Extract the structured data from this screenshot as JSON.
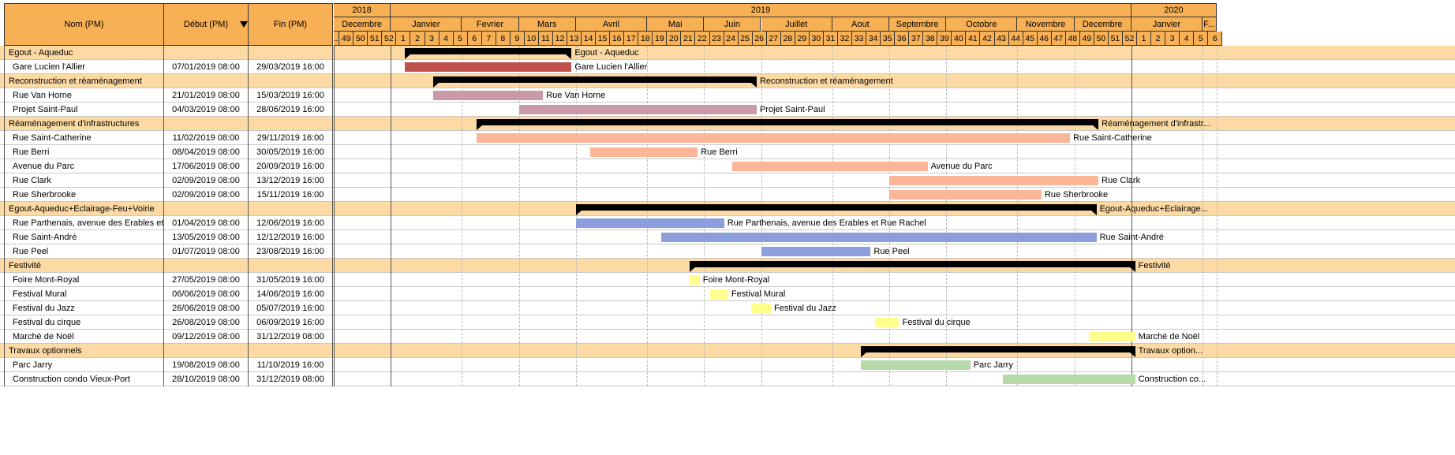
{
  "columns": {
    "name": "Nom (PM)",
    "start": "Début (PM)",
    "end": "Fin (PM)"
  },
  "sort_icon": "sort-descending-arrow-icon",
  "timeline": {
    "start_date": "2018-12-03",
    "first_week_partial_label": "...",
    "years": [
      {
        "label": "2018",
        "from": "2018-12-03",
        "to": "2018-12-31"
      },
      {
        "label": "2019",
        "from": "2018-12-31",
        "to": "2019-12-30"
      },
      {
        "label": "2020",
        "from": "2019-12-30",
        "to": "2020-02-10"
      }
    ],
    "months": [
      {
        "label": "Decembre",
        "from": "2018-12-03",
        "to": "2018-12-31"
      },
      {
        "label": "Janvier",
        "from": "2018-12-31",
        "to": "2019-02-04"
      },
      {
        "label": "Fevrier",
        "from": "2019-02-04",
        "to": "2019-03-04"
      },
      {
        "label": "Mars",
        "from": "2019-03-04",
        "to": "2019-04-01"
      },
      {
        "label": "Avril",
        "from": "2019-04-01",
        "to": "2019-05-06"
      },
      {
        "label": "Mai",
        "from": "2019-05-06",
        "to": "2019-06-03"
      },
      {
        "label": "Juin",
        "from": "2019-06-03",
        "to": "2019-07-01"
      },
      {
        "label": "Juillet",
        "from": "2019-07-01",
        "to": "2019-08-05"
      },
      {
        "label": "Aout",
        "from": "2019-08-05",
        "to": "2019-09-02"
      },
      {
        "label": "Septembre",
        "from": "2019-09-02",
        "to": "2019-09-30"
      },
      {
        "label": "Octobre",
        "from": "2019-09-30",
        "to": "2019-11-04"
      },
      {
        "label": "Novembre",
        "from": "2019-11-04",
        "to": "2019-12-02"
      },
      {
        "label": "Decembre",
        "from": "2019-12-02",
        "to": "2019-12-30"
      },
      {
        "label": "Janvier",
        "from": "2019-12-30",
        "to": "2020-02-03"
      },
      {
        "label": "F...",
        "from": "2020-02-03",
        "to": "2020-02-10"
      }
    ],
    "weeks": [
      "49",
      "50",
      "51",
      "52",
      "1",
      "2",
      "3",
      "4",
      "5",
      "6",
      "7",
      "8",
      "9",
      "10",
      "11",
      "12",
      "13",
      "14",
      "15",
      "16",
      "17",
      "18",
      "19",
      "20",
      "21",
      "22",
      "23",
      "24",
      "25",
      "26",
      "27",
      "28",
      "29",
      "30",
      "31",
      "32",
      "33",
      "34",
      "35",
      "36",
      "37",
      "38",
      "39",
      "40",
      "41",
      "42",
      "43",
      "44",
      "45",
      "46",
      "47",
      "48",
      "49",
      "50",
      "51",
      "52",
      "1",
      "2",
      "3",
      "4",
      "5",
      "6"
    ]
  },
  "colors": {
    "header": "#f8b055",
    "summary_row": "#fdd9a3",
    "summary_bar": "#000000"
  },
  "rows": [
    {
      "type": "summary",
      "name": "Egout - Aqueduc",
      "start": "",
      "end": "",
      "bar_start": "2019-01-07",
      "bar_end": "2019-03-29",
      "label": "Egout - Aqueduc"
    },
    {
      "type": "task",
      "name": "Gare Lucien l'Allier",
      "start": "07/01/2019 08:00",
      "end": "29/03/2019 16:00",
      "bar_start": "2019-01-07",
      "bar_end": "2019-03-29",
      "label": "Gare Lucien l'Allier",
      "color": "#c0504d"
    },
    {
      "type": "summary",
      "name": "Reconstruction et réaménagement",
      "start": "",
      "end": "",
      "bar_start": "2019-01-21",
      "bar_end": "2019-06-28",
      "label": "Reconstruction et réaménagement"
    },
    {
      "type": "task",
      "name": "Rue Van Horne",
      "start": "21/01/2019 08:00",
      "end": "15/03/2019 16:00",
      "bar_start": "2019-01-21",
      "bar_end": "2019-03-15",
      "label": "Rue Van Horne",
      "color": "#cc99aa"
    },
    {
      "type": "task",
      "name": "Projet Saint-Paul",
      "start": "04/03/2019 08:00",
      "end": "28/06/2019 16:00",
      "bar_start": "2019-03-04",
      "bar_end": "2019-06-28",
      "label": "Projet Saint-Paul",
      "color": "#cc99aa"
    },
    {
      "type": "summary",
      "name": "Réaménagement d'infrastructures",
      "start": "",
      "end": "",
      "bar_start": "2019-02-11",
      "bar_end": "2019-12-13",
      "label": "Réaménagement d'infrastr..."
    },
    {
      "type": "task",
      "name": "Rue Saint-Catherine",
      "start": "11/02/2019 08:00",
      "end": "29/11/2019 16:00",
      "bar_start": "2019-02-11",
      "bar_end": "2019-11-29",
      "label": "Rue Saint-Catherine",
      "color": "#fbb597"
    },
    {
      "type": "task",
      "name": "Rue Berri",
      "start": "08/04/2019 08:00",
      "end": "30/05/2019 16:00",
      "bar_start": "2019-04-08",
      "bar_end": "2019-05-30",
      "label": "Rue Berri",
      "color": "#fbb597"
    },
    {
      "type": "task",
      "name": "Avenue du Parc",
      "start": "17/06/2019 08:00",
      "end": "20/09/2019 16:00",
      "bar_start": "2019-06-17",
      "bar_end": "2019-09-20",
      "label": "Avenue du Parc",
      "color": "#fbb597"
    },
    {
      "type": "task",
      "name": "Rue Clark",
      "start": "02/09/2019 08:00",
      "end": "13/12/2019 16:00",
      "bar_start": "2019-09-02",
      "bar_end": "2019-12-13",
      "label": "Rue Clark",
      "color": "#fbb597"
    },
    {
      "type": "task",
      "name": "Rue Sherbrooke",
      "start": "02/09/2019 08:00",
      "end": "15/11/2019 16:00",
      "bar_start": "2019-09-02",
      "bar_end": "2019-11-15",
      "label": "Rue Sherbrooke",
      "color": "#fbb597"
    },
    {
      "type": "summary",
      "name": "Egout-Aqueduc+Eclairage-Feu+Voirie",
      "start": "",
      "end": "",
      "bar_start": "2019-04-01",
      "bar_end": "2019-12-12",
      "label": "Egout-Aqueduc+Eclairage..."
    },
    {
      "type": "task",
      "name": "Rue Parthenais, avenue des Erables et Rue...",
      "start": "01/04/2019 08:00",
      "end": "12/06/2019 16:00",
      "bar_start": "2019-04-01",
      "bar_end": "2019-06-12",
      "label": "Rue Parthenais, avenue des Erables et Rue Rachel",
      "color": "#8c9fdc"
    },
    {
      "type": "task",
      "name": "Rue Saint-André",
      "start": "13/05/2019 08:00",
      "end": "12/12/2019 16:00",
      "bar_start": "2019-05-13",
      "bar_end": "2019-12-12",
      "label": "Rue Saint-André",
      "color": "#8c9fdc"
    },
    {
      "type": "task",
      "name": "Rue Peel",
      "start": "01/07/2019 08:00",
      "end": "23/08/2019 16:00",
      "bar_start": "2019-07-01",
      "bar_end": "2019-08-23",
      "label": "Rue Peel",
      "color": "#8c9fdc"
    },
    {
      "type": "summary",
      "name": "Festivité",
      "start": "",
      "end": "",
      "bar_start": "2019-05-27",
      "bar_end": "2019-12-31",
      "label": "Festivité"
    },
    {
      "type": "task",
      "name": "Foire Mont-Royal",
      "start": "27/05/2019 08:00",
      "end": "31/05/2019 16:00",
      "bar_start": "2019-05-27",
      "bar_end": "2019-05-31",
      "label": "Foire Mont-Royal",
      "color": "#ffff8c"
    },
    {
      "type": "task",
      "name": "Festival Mural",
      "start": "06/06/2019 08:00",
      "end": "14/06/2019 16:00",
      "bar_start": "2019-06-06",
      "bar_end": "2019-06-14",
      "label": "Festival Mural",
      "color": "#ffff8c"
    },
    {
      "type": "task",
      "name": "Festival du Jazz",
      "start": "26/06/2019 08:00",
      "end": "05/07/2019 16:00",
      "bar_start": "2019-06-26",
      "bar_end": "2019-07-05",
      "label": "Festival du Jazz",
      "color": "#ffff8c"
    },
    {
      "type": "task",
      "name": "Festival du cirque",
      "start": "26/08/2019 08:00",
      "end": "06/09/2019 16:00",
      "bar_start": "2019-08-26",
      "bar_end": "2019-09-06",
      "label": "Festival du cirque",
      "color": "#ffff8c"
    },
    {
      "type": "task",
      "name": "Marché de Noël",
      "start": "09/12/2019 08:00",
      "end": "31/12/2019 08:00",
      "bar_start": "2019-12-09",
      "bar_end": "2019-12-31",
      "label": "Marché de Noël",
      "color": "#ffff8c"
    },
    {
      "type": "summary",
      "name": "Travaux optionnels",
      "start": "",
      "end": "",
      "bar_start": "2019-08-19",
      "bar_end": "2019-12-31",
      "label": "Travaux option..."
    },
    {
      "type": "task",
      "name": "Parc Jarry",
      "start": "19/08/2019 08:00",
      "end": "11/10/2019 16:00",
      "bar_start": "2019-08-19",
      "bar_end": "2019-10-11",
      "label": "Parc Jarry",
      "color": "#b5d9a8"
    },
    {
      "type": "task",
      "name": "Construction condo Vieux-Port",
      "start": "28/10/2019 08:00",
      "end": "31/12/2019 08:00",
      "bar_start": "2019-10-28",
      "bar_end": "2019-12-31",
      "label": "Construction co...",
      "color": "#b5d9a8"
    }
  ]
}
